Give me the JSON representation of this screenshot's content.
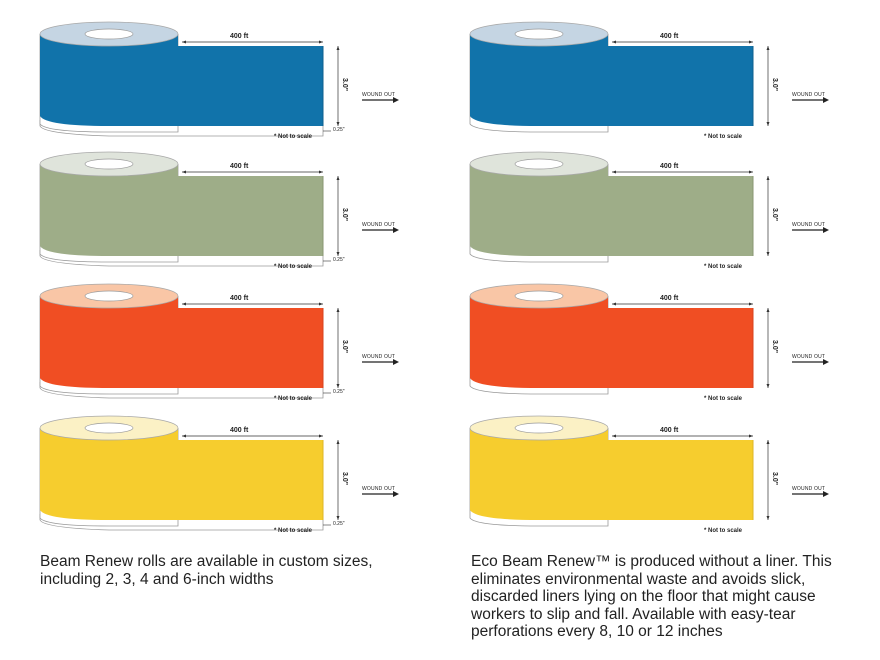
{
  "labels": {
    "length": "400 ft",
    "width": "3.0\"",
    "wound_out": "WOUND OUT",
    "liner": "0.25\"",
    "not_to_scale": "* Not to scale"
  },
  "panels": [
    {
      "id": "beam-renew",
      "has_liner": true,
      "caption": "Beam Renew rolls are available in custom sizes, including 2, 3, 4 and 6-inch widths"
    },
    {
      "id": "eco-beam-renew",
      "has_liner": false,
      "caption": "Eco Beam Renew™ is produced without a liner. This eliminates environmental waste and avoids slick, discarded liners lying on the floor that might cause workers to slip and fall. Available with easy-tear perforations every 8, 10 or 12 inches"
    }
  ],
  "colors": [
    {
      "name": "blue",
      "face": "#1173aa",
      "top": "#c5d5e3",
      "edge": "#0d5f8e"
    },
    {
      "name": "green",
      "face": "#9ead88",
      "top": "#dfe4db",
      "edge": "#889672"
    },
    {
      "name": "orange",
      "face": "#f04e23",
      "top": "#f9c6a6",
      "edge": "#d8431c"
    },
    {
      "name": "yellow",
      "face": "#f6cd2e",
      "top": "#fbf1c5",
      "edge": "#ddb624"
    }
  ]
}
